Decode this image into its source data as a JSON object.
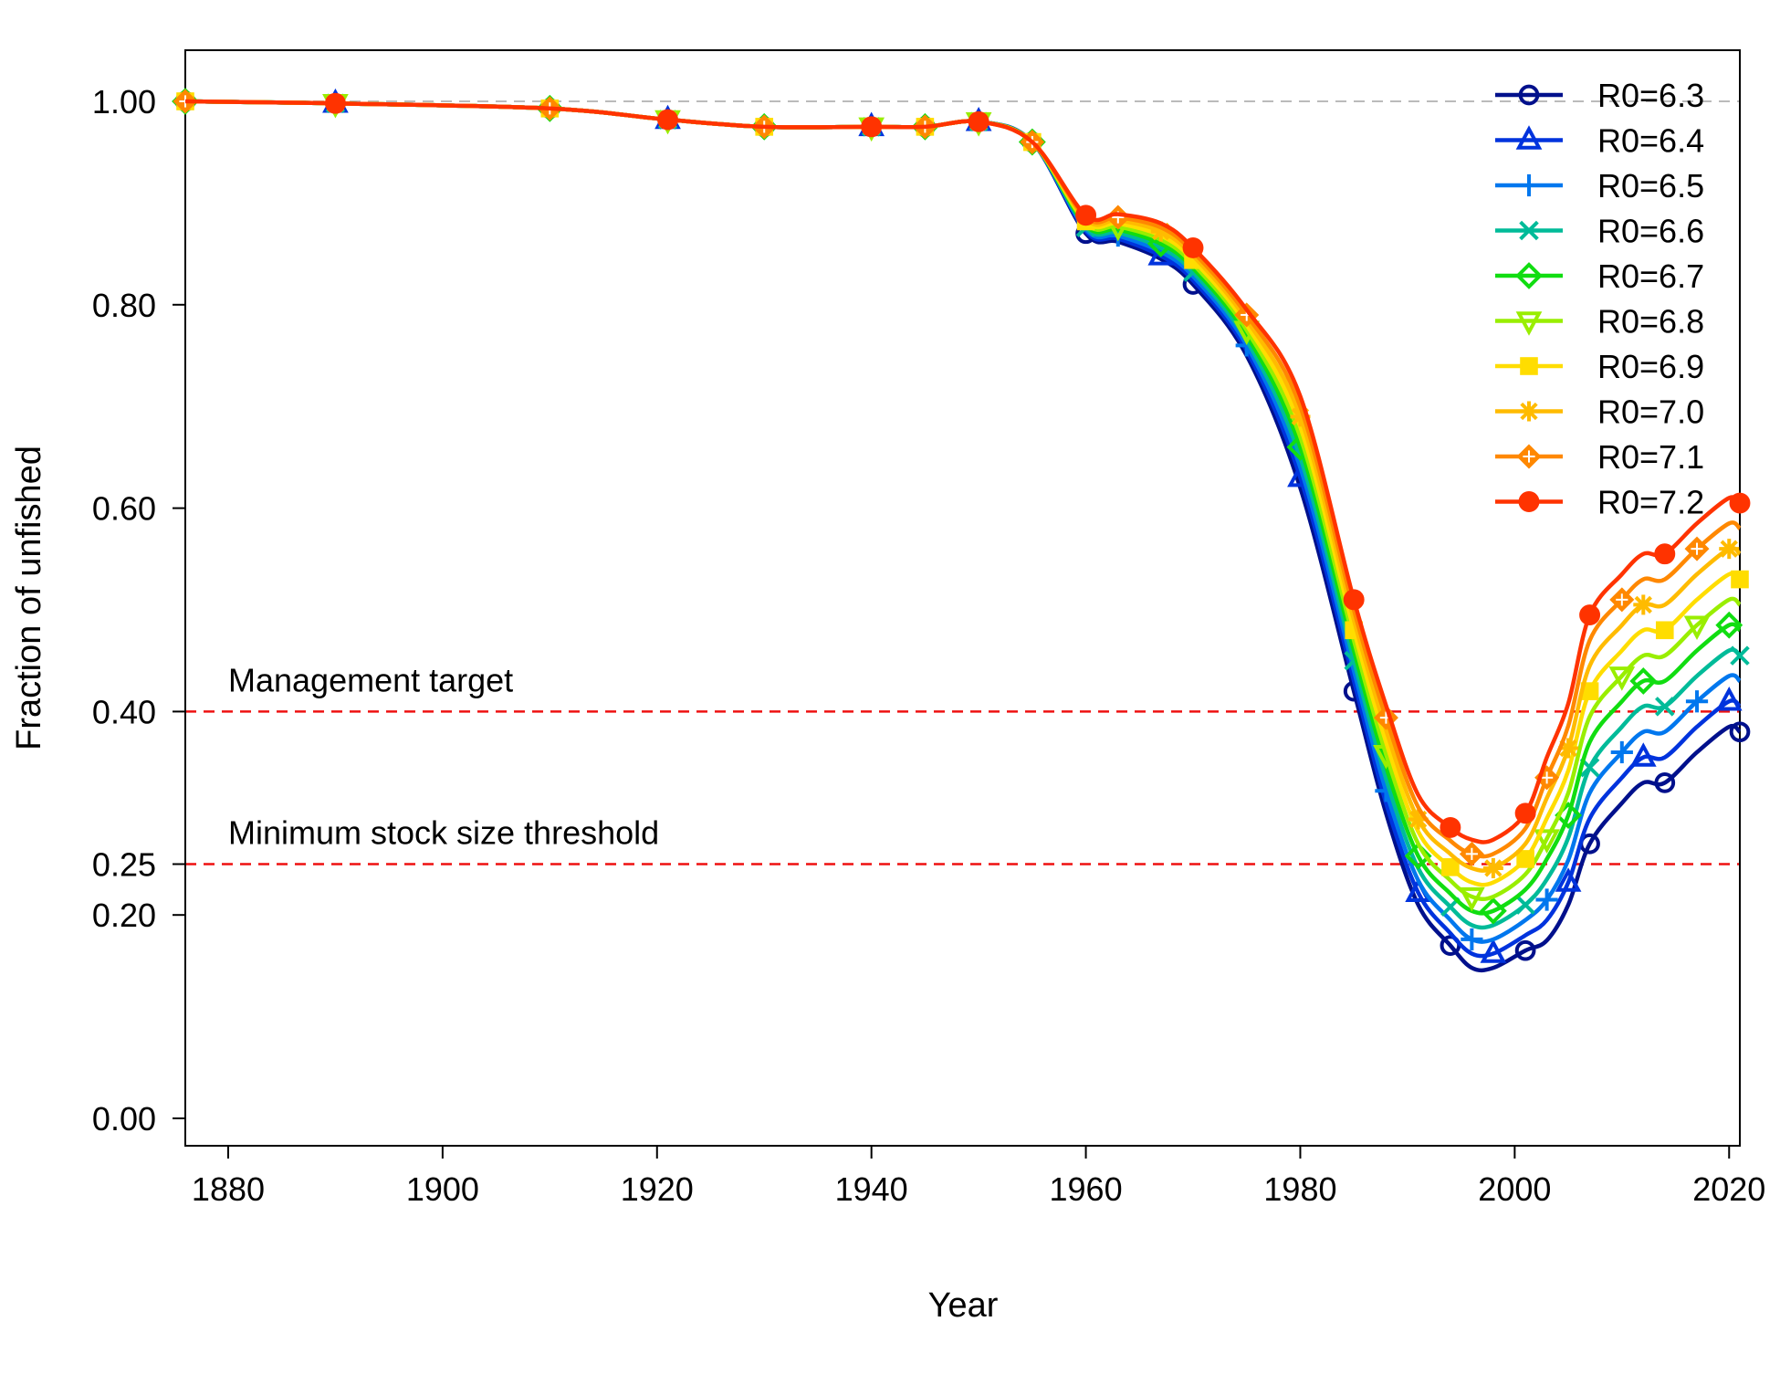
{
  "chart_data": {
    "type": "line",
    "title": "",
    "xlabel": "Year",
    "ylabel": "Fraction of unfished",
    "xlim": [
      1876,
      2021
    ],
    "ylim": [
      0,
      1.0
    ],
    "x_ticks": [
      1880,
      1900,
      1920,
      1940,
      1960,
      1980,
      2000,
      2020
    ],
    "x_tick_labels": [
      "1880",
      "1900",
      "1920",
      "1940",
      "1960",
      "1980",
      "2000",
      "2020"
    ],
    "y_ticks": [
      0,
      0.2,
      0.25,
      0.4,
      0.6,
      0.8,
      1.0
    ],
    "y_tick_labels": [
      "0.00",
      "0.20",
      "0.25",
      "0.40",
      "0.60",
      "0.80",
      "1.00"
    ],
    "grid": false,
    "legend_position": "top-right",
    "reference_lines": [
      {
        "y": 1.0,
        "label": "",
        "color": "#bbbbbb"
      },
      {
        "y": 0.4,
        "label": "Management target",
        "color": "#ee1111"
      },
      {
        "y": 0.25,
        "label": "Minimum stock size threshold",
        "color": "#ee1111"
      }
    ],
    "shared_x": [
      1876,
      1890,
      1910,
      1921,
      1930,
      1940,
      1945,
      1950,
      1955,
      1960,
      1963,
      1967,
      1970,
      1975,
      1980,
      1985,
      1988,
      1991,
      1994,
      1996,
      1998,
      2001,
      2003,
      2005,
      2007,
      2010,
      2012,
      2014,
      2017,
      2020,
      2021
    ],
    "shared_early_y": [
      1.0,
      0.998,
      0.993,
      0.982,
      0.975,
      0.975,
      0.975,
      0.98,
      0.96
    ],
    "series": [
      {
        "name": "R0=6.3",
        "color": "#00108c",
        "marker": "circle",
        "late_y": [
          0.87,
          0.862,
          0.845,
          0.82,
          0.75,
          0.62,
          0.42,
          0.3,
          0.21,
          0.17,
          0.148,
          0.148,
          0.165,
          0.175,
          0.21,
          0.27,
          0.31,
          0.33,
          0.33,
          0.36,
          0.385,
          0.38
        ]
      },
      {
        "name": "R0=6.4",
        "color": "#0033dd",
        "marker": "triangle",
        "late_y": [
          0.872,
          0.865,
          0.848,
          0.824,
          0.755,
          0.63,
          0.43,
          0.31,
          0.222,
          0.182,
          0.162,
          0.162,
          0.18,
          0.195,
          0.232,
          0.295,
          0.335,
          0.355,
          0.355,
          0.385,
          0.41,
          0.405
        ]
      },
      {
        "name": "R0=6.5",
        "color": "#0077ee",
        "marker": "plus",
        "late_y": [
          0.874,
          0.868,
          0.852,
          0.828,
          0.76,
          0.64,
          0.44,
          0.322,
          0.234,
          0.195,
          0.176,
          0.176,
          0.195,
          0.215,
          0.254,
          0.32,
          0.36,
          0.38,
          0.38,
          0.41,
          0.435,
          0.43
        ]
      },
      {
        "name": "R0=6.6",
        "color": "#00bb99",
        "marker": "x",
        "late_y": [
          0.876,
          0.871,
          0.856,
          0.832,
          0.765,
          0.65,
          0.45,
          0.334,
          0.246,
          0.208,
          0.19,
          0.19,
          0.21,
          0.235,
          0.276,
          0.345,
          0.385,
          0.405,
          0.405,
          0.435,
          0.46,
          0.455
        ]
      },
      {
        "name": "R0=6.7",
        "color": "#11dd11",
        "marker": "diamond",
        "late_y": [
          0.878,
          0.874,
          0.86,
          0.836,
          0.77,
          0.66,
          0.46,
          0.346,
          0.258,
          0.221,
          0.204,
          0.204,
          0.225,
          0.255,
          0.298,
          0.37,
          0.41,
          0.43,
          0.43,
          0.46,
          0.485,
          0.48
        ]
      },
      {
        "name": "R0=6.8",
        "color": "#99ee00",
        "marker": "triangle-down",
        "late_y": [
          0.88,
          0.877,
          0.864,
          0.84,
          0.775,
          0.67,
          0.47,
          0.358,
          0.27,
          0.234,
          0.218,
          0.218,
          0.24,
          0.275,
          0.32,
          0.395,
          0.435,
          0.455,
          0.455,
          0.485,
          0.51,
          0.505
        ]
      },
      {
        "name": "R0=6.9",
        "color": "#ffdd00",
        "marker": "square",
        "late_y": [
          0.882,
          0.88,
          0.868,
          0.844,
          0.78,
          0.68,
          0.48,
          0.37,
          0.282,
          0.247,
          0.232,
          0.232,
          0.255,
          0.295,
          0.342,
          0.42,
          0.46,
          0.48,
          0.48,
          0.51,
          0.535,
          0.53
        ]
      },
      {
        "name": "R0=7.0",
        "color": "#ffbb00",
        "marker": "asterisk",
        "late_y": [
          0.884,
          0.883,
          0.872,
          0.848,
          0.785,
          0.69,
          0.49,
          0.382,
          0.294,
          0.26,
          0.246,
          0.246,
          0.27,
          0.315,
          0.364,
          0.445,
          0.485,
          0.505,
          0.505,
          0.535,
          0.56,
          0.555
        ]
      },
      {
        "name": "R0=7.1",
        "color": "#ff8800",
        "marker": "diamond-plus",
        "late_y": [
          0.886,
          0.886,
          0.876,
          0.852,
          0.79,
          0.7,
          0.5,
          0.394,
          0.306,
          0.273,
          0.26,
          0.26,
          0.285,
          0.335,
          0.386,
          0.47,
          0.51,
          0.53,
          0.53,
          0.56,
          0.585,
          0.58
        ]
      },
      {
        "name": "R0=7.2",
        "color": "#ff3300",
        "marker": "filled-circle",
        "late_y": [
          0.888,
          0.889,
          0.88,
          0.856,
          0.795,
          0.71,
          0.51,
          0.406,
          0.318,
          0.286,
          0.274,
          0.274,
          0.3,
          0.355,
          0.408,
          0.495,
          0.535,
          0.555,
          0.555,
          0.585,
          0.61,
          0.605
        ]
      }
    ]
  }
}
